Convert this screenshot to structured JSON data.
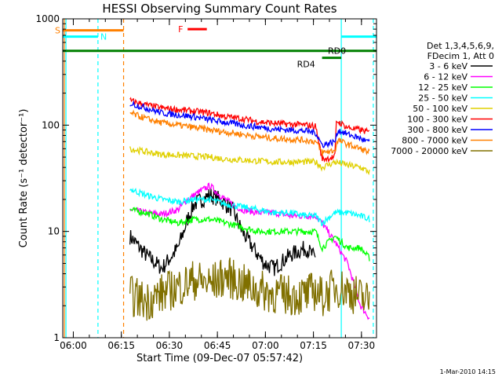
{
  "chart_data": {
    "type": "line",
    "title": "HESSI Observing Summary Count Rates",
    "xlabel": "Start Time (09-Dec-07 05:57:42)",
    "ylabel": "Count Rate (s⁻¹ detector⁻¹)",
    "yscale": "log",
    "ylim": [
      1,
      1000
    ],
    "xlim_minutes": [
      -1,
      97
    ],
    "x_tick_labels": [
      "06:00",
      "06:15",
      "06:30",
      "06:45",
      "07:00",
      "07:15",
      "07:30"
    ],
    "x_tick_minutes": [
      2.3,
      17.3,
      32.3,
      47.3,
      62.3,
      77.3,
      92.3
    ],
    "y_tick_labels": [
      "1",
      "10",
      "100",
      "1000"
    ],
    "y_tick_values": [
      1,
      10,
      100,
      1000
    ],
    "legend_header": [
      "Det 1,3,4,5,6,9,",
      "FDecim 1, Att 0"
    ],
    "legend_position": "right",
    "series": [
      {
        "name": "3 - 6 keV",
        "color": "#000000",
        "x": [
          20,
          25,
          30,
          35,
          38,
          40,
          45,
          48,
          52,
          55,
          60,
          62,
          65,
          70,
          75,
          78
        ],
        "y": [
          9,
          6,
          4.5,
          7,
          13,
          18,
          22,
          20,
          16,
          10,
          6,
          5,
          4.5,
          6,
          7,
          5.5
        ]
      },
      {
        "name": "6 - 12 keV",
        "color": "#ff00ff",
        "x": [
          20,
          25,
          30,
          35,
          38,
          42,
          45,
          48,
          52,
          55,
          60,
          65,
          70,
          75,
          78,
          80,
          84,
          88,
          92,
          95
        ],
        "y": [
          16,
          15,
          14.5,
          16,
          20,
          24,
          27,
          22,
          18,
          16,
          15,
          15,
          14,
          14,
          14,
          12,
          8,
          5,
          2,
          1.5
        ]
      },
      {
        "name": "12 - 25 keV",
        "color": "#00ff00",
        "x": [
          20,
          25,
          30,
          35,
          40,
          45,
          50,
          55,
          60,
          65,
          70,
          75,
          78,
          80,
          84,
          88,
          92,
          95
        ],
        "y": [
          16,
          15,
          13,
          12,
          13,
          13,
          12,
          11,
          10,
          10,
          10,
          10,
          10,
          7,
          9,
          7,
          7,
          5.5
        ]
      },
      {
        "name": "25 - 50 keV",
        "color": "#00ffff",
        "x": [
          20,
          25,
          30,
          35,
          40,
          45,
          50,
          55,
          60,
          65,
          70,
          75,
          78,
          80,
          84,
          88,
          92,
          95
        ],
        "y": [
          25,
          22,
          20,
          19,
          20,
          20,
          18,
          17,
          16,
          15,
          15,
          14,
          14,
          12,
          15,
          15,
          14,
          13
        ]
      },
      {
        "name": "50 - 100 keV",
        "color": "#e0d000",
        "x": [
          20,
          25,
          30,
          35,
          40,
          45,
          50,
          55,
          60,
          65,
          70,
          75,
          78,
          80,
          84,
          88,
          92,
          95
        ],
        "y": [
          60,
          56,
          53,
          52,
          51,
          50,
          48,
          47,
          46,
          45,
          45,
          45,
          45,
          40,
          45,
          42,
          40,
          36
        ]
      },
      {
        "name": "100 - 300 keV",
        "color": "#ff0000",
        "x": [
          20,
          25,
          30,
          35,
          40,
          45,
          50,
          55,
          60,
          65,
          70,
          75,
          78,
          80,
          84,
          84.5,
          88,
          92,
          95
        ],
        "y": [
          170,
          155,
          145,
          140,
          135,
          130,
          120,
          115,
          108,
          104,
          102,
          100,
          98,
          48,
          50,
          110,
          95,
          90,
          85
        ]
      },
      {
        "name": "300 - 800 keV",
        "color": "#0000ff",
        "x": [
          20,
          25,
          30,
          35,
          40,
          45,
          50,
          55,
          60,
          65,
          70,
          75,
          78,
          80,
          84,
          85,
          88,
          92,
          95
        ],
        "y": [
          160,
          145,
          130,
          125,
          120,
          112,
          106,
          100,
          96,
          92,
          90,
          88,
          85,
          65,
          70,
          90,
          82,
          75,
          68
        ]
      },
      {
        "name": "800 - 7000 keV",
        "color": "#ff8000",
        "x": [
          20,
          25,
          30,
          35,
          40,
          45,
          50,
          55,
          60,
          65,
          70,
          75,
          78,
          80,
          84,
          85,
          88,
          92,
          95
        ],
        "y": [
          130,
          115,
          105,
          100,
          95,
          90,
          86,
          82,
          78,
          75,
          74,
          72,
          70,
          55,
          58,
          72,
          66,
          60,
          55
        ]
      },
      {
        "name": "7000 - 20000 keV",
        "color": "#807000",
        "x": [
          20,
          25,
          30,
          35,
          40,
          45,
          50,
          55,
          60,
          65,
          70,
          75,
          78,
          80,
          84,
          88,
          92,
          95
        ],
        "y": [
          2.5,
          2.2,
          2.6,
          3,
          3.5,
          3.2,
          3.8,
          3.2,
          2.8,
          2.6,
          2.5,
          2.5,
          2.8,
          2.4,
          3,
          2.8,
          2.4,
          2.2
        ]
      }
    ],
    "flags": [
      {
        "label": "S",
        "color": "#ff8000",
        "x": [
          -1,
          18
        ],
        "y": 780
      },
      {
        "label": "N",
        "color": "#00ffff",
        "x": [
          -1,
          10
        ],
        "y": 680
      },
      {
        "label": "F",
        "color": "#ff0000",
        "x": [
          38,
          44
        ],
        "y": 800
      },
      {
        "label": "RD0",
        "color": "#008000",
        "x": [
          -1,
          97
        ],
        "y": 500
      },
      {
        "label": "RD4",
        "color": "#008000",
        "x": [
          80,
          86
        ],
        "y": 430
      },
      {
        "label": "",
        "color": "#00ffff",
        "x": [
          86,
          97
        ],
        "y": 680
      }
    ],
    "vertical_markers": [
      {
        "x": -0.5,
        "color": "#ff8000",
        "style": "solid"
      },
      {
        "x": 0,
        "color": "#00ffff",
        "style": "solid"
      },
      {
        "x": 10,
        "color": "#00ffff",
        "style": "dashed"
      },
      {
        "x": 18,
        "color": "#ff8000",
        "style": "dashed"
      },
      {
        "x": 86,
        "color": "#00ffff",
        "style": "solid"
      },
      {
        "x": 96,
        "color": "#00ffff",
        "style": "dashed"
      }
    ]
  },
  "footer": "1-Mar-2010 14:15"
}
